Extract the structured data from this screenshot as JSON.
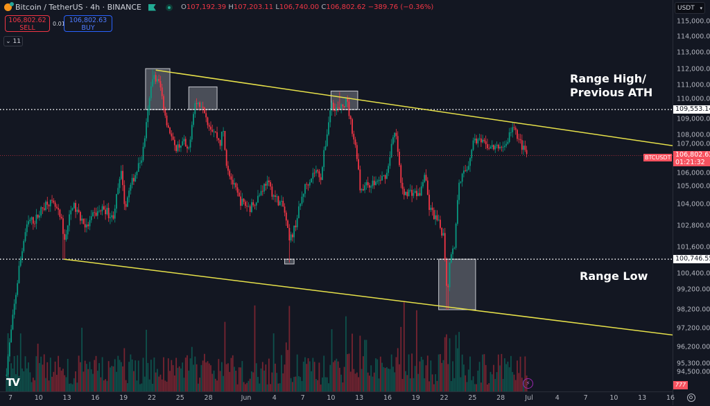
{
  "header": {
    "title": "Bitcoin / TetherUS · 4h · BINANCE",
    "ohlc": {
      "o_label": "O",
      "o": "107,192.39",
      "h_label": "H",
      "h": "107,203.11",
      "l_label": "L",
      "l": "106,740.00",
      "c_label": "C",
      "c": "106,802.62",
      "change": "−389.76 (−0.36%)"
    },
    "sell": {
      "price": "106,802.62",
      "label": "SELL"
    },
    "buy": {
      "price": "106,802.63",
      "label": "BUY"
    },
    "spread": "0.01",
    "indicators_toggle": "⌄ 11"
  },
  "colors": {
    "background": "#131722",
    "up": "#089981",
    "down": "#f23645",
    "trendline": "#e8e24a",
    "box": "#b2b5be"
  },
  "chart_data": {
    "type": "candlestick",
    "symbol": "BTCUSDT",
    "interval": "4h",
    "currency": "USDT",
    "y_ticks": [
      "115,000.00",
      "114,000.00",
      "113,000.00",
      "112,000.00",
      "111,000.00",
      "110,000.00",
      "109,000.00",
      "108,000.00",
      "107,000.00",
      "106,000.00",
      "105,000.00",
      "104,000.00",
      "102,800.00",
      "101,600.00",
      "100,400.00",
      "99,200.00",
      "98,200.00",
      "97,200.00",
      "96,200.00",
      "95,300.00",
      "94,500.00"
    ],
    "x_ticks": [
      "7",
      "10",
      "13",
      "16",
      "19",
      "22",
      "25",
      "28",
      "Jun",
      "4",
      "7",
      "10",
      "13",
      "16",
      "19",
      "22",
      "25",
      "28",
      "Jul",
      "4",
      "7",
      "10",
      "13",
      "16"
    ],
    "x_range": [
      "May 6 12:00",
      "Jul 17 00:00"
    ],
    "close_path": [
      [
        "May 6 14:00",
        95000
      ],
      [
        "May 7 10:00",
        98400
      ],
      [
        "May 8 12:00",
        102300
      ],
      [
        "May 9 00:00",
        103100
      ],
      [
        "May 9 14:00",
        103100
      ],
      [
        "May 10 22:00",
        104200
      ],
      [
        "May 11 20:00",
        103800
      ],
      [
        "May 12 10:00",
        103000
      ],
      [
        "May 12 16:00",
        101900
      ],
      [
        "May 13 14:00",
        104000
      ],
      [
        "May 15 02:00",
        102700
      ],
      [
        "May 15 20:00",
        103400
      ],
      [
        "May 16 22:00",
        103800
      ],
      [
        "May 17 20:00",
        103200
      ],
      [
        "May 18 20:00",
        106000
      ],
      [
        "May 19 02:00",
        103800
      ],
      [
        "May 19 22:00",
        105300
      ],
      [
        "May 21 00:00",
        106800
      ],
      [
        "May 21 12:00",
        109000
      ],
      [
        "May 22 02:00",
        111600
      ],
      [
        "May 22 20:00",
        111100
      ],
      [
        "May 23 12:00",
        109000
      ],
      [
        "May 23 22:00",
        108200
      ],
      [
        "May 24 10:00",
        107200
      ],
      [
        "May 25 10:00",
        107600
      ],
      [
        "May 25 20:00",
        106800
      ],
      [
        "May 26 12:00",
        109900
      ],
      [
        "May 27 10:00",
        109900
      ],
      [
        "May 28 00:00",
        108700
      ],
      [
        "May 28 16:00",
        108200
      ],
      [
        "May 29 08:00",
        107400
      ],
      [
        "May 29 12:00",
        108700
      ],
      [
        "May 29 20:00",
        106600
      ],
      [
        "May 30 12:00",
        105300
      ],
      [
        "May 31 08:00",
        104200
      ],
      [
        "Jun 1 10:00",
        103800
      ],
      [
        "Jun 2 08:00",
        104500
      ],
      [
        "Jun 3 04:00",
        105300
      ],
      [
        "Jun 3 22:00",
        104500
      ],
      [
        "Jun 5 00:00",
        103800
      ],
      [
        "Jun 5 14:00",
        101900
      ],
      [
        "Jun 6 02:00",
        102600
      ],
      [
        "Jun 7 04:00",
        104900
      ],
      [
        "Jun 8 08:00",
        106000
      ],
      [
        "Jun 8 22:00",
        105600
      ],
      [
        "Jun 9 12:00",
        107800
      ],
      [
        "Jun 10 00:00",
        109900
      ],
      [
        "Jun 10 22:00",
        109500
      ],
      [
        "Jun 11 16:00",
        110100
      ],
      [
        "Jun 12 10:00",
        107800
      ],
      [
        "Jun 12 20:00",
        106600
      ],
      [
        "Jun 13 02:00",
        104900
      ],
      [
        "Jun 13 22:00",
        105100
      ],
      [
        "Jun 15 00:00",
        105300
      ],
      [
        "Jun 15 22:00",
        105800
      ],
      [
        "Jun 16 10:00",
        107400
      ],
      [
        "Jun 16 20:00",
        108200
      ],
      [
        "Jun 17 04:00",
        106600
      ],
      [
        "Jun 17 12:00",
        104700
      ],
      [
        "Jun 18 14:00",
        104700
      ],
      [
        "Jun 19 10:00",
        104500
      ],
      [
        "Jun 19 22:00",
        105800
      ],
      [
        "Jun 20 10:00",
        103800
      ],
      [
        "Jun 21 08:00",
        103000
      ],
      [
        "Jun 21 22:00",
        102300
      ],
      [
        "Jun 22 08:00",
        98800
      ],
      [
        "Jun 22 14:00",
        100700
      ],
      [
        "Jun 23 04:00",
        101900
      ],
      [
        "Jun 23 12:00",
        105300
      ],
      [
        "Jun 24 12:00",
        106200
      ],
      [
        "Jun 25 04:00",
        107800
      ],
      [
        "Jun 26 08:00",
        107400
      ],
      [
        "Jun 27 08:00",
        107200
      ],
      [
        "Jun 28 14:00",
        107400
      ],
      [
        "Jun 29 04:00",
        108500
      ],
      [
        "Jun 29 16:00",
        108100
      ],
      [
        "Jun 30 04:00",
        107400
      ],
      [
        "Jun 30 20:00",
        106802.62
      ]
    ],
    "wick_extremes": [
      [
        "May 12 16:00",
        100746.55
      ],
      [
        "Jun 5 14:00",
        100500
      ],
      [
        "Jun 22 08:00",
        98200
      ],
      [
        "May 22 02:00",
        111980
      ],
      [
        "Jun 10 22:00",
        110600
      ]
    ],
    "last_price": "106,802.62",
    "countdown": "01:21:32",
    "symbol_tag": "BTCUSDT",
    "volume_tag": "777"
  },
  "annotations": {
    "levels": [
      {
        "price": 109553.14,
        "label": "109,553.14"
      },
      {
        "price": 100746.55,
        "label": "100,746.55"
      }
    ],
    "trendlines": [
      {
        "from": [
          "May 22 10:00",
          111950
        ],
        "to": [
          "Jul 17 00:00",
          107300
        ]
      },
      {
        "from": [
          "May 12 16:00",
          100746.55
        ],
        "to": [
          "Jul 17 00:00",
          96800
        ]
      }
    ],
    "boxes": [
      {
        "from": [
          "May 21 08:00",
          112040
        ],
        "to": [
          "May 23 22:00",
          109553.14
        ]
      },
      {
        "from": [
          "May 25 22:00",
          110900
        ],
        "to": [
          "May 28 22:00",
          109553.14
        ]
      },
      {
        "from": [
          "Jun 10 00:00",
          110650
        ],
        "to": [
          "Jun 12 20:00",
          109553.14
        ]
      },
      {
        "from": [
          "Jun 5 02:00",
          100746.55
        ],
        "to": [
          "Jun 6 02:00",
          100400
        ]
      },
      {
        "from": [
          "Jun 21 10:00",
          100746.55
        ],
        "to": [
          "Jun 25 08:00",
          98200
        ]
      }
    ],
    "range_high_text": "Range High/\nPrevious ATH",
    "range_low_text": "Range Low"
  }
}
